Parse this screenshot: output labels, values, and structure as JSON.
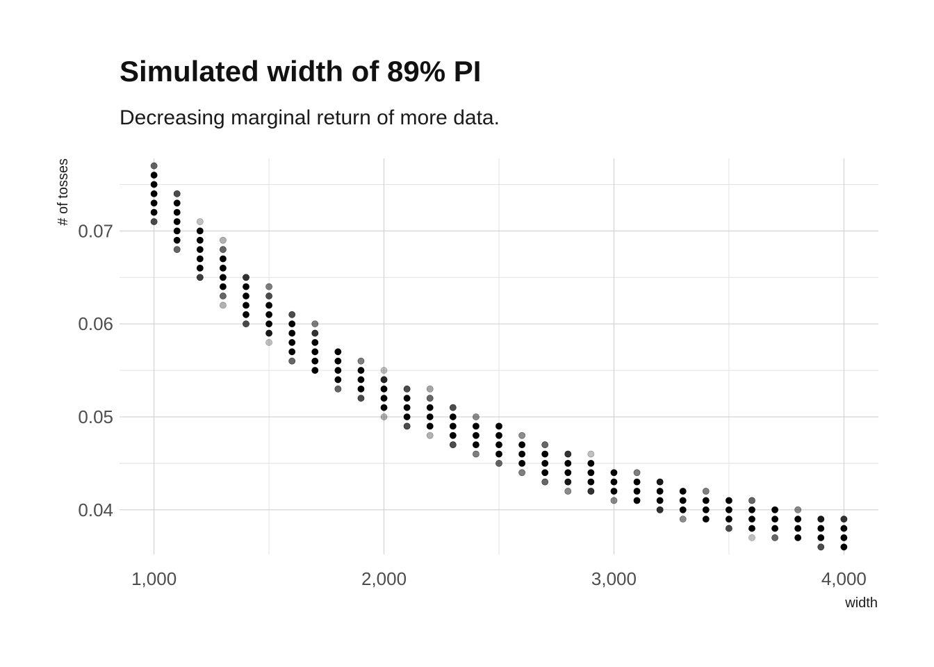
{
  "chart_data": {
    "type": "scatter",
    "title": "Simulated width of 89% PI",
    "subtitle": "Decreasing marginal return of more data.",
    "xlabel": "width",
    "ylabel": "# of tosses",
    "xlim": [
      850,
      4150
    ],
    "ylim": [
      0.0352,
      0.0778
    ],
    "x_ticks": [
      1000,
      2000,
      3000,
      4000
    ],
    "x_tick_labels": [
      "1,000",
      "2,000",
      "3,000",
      "4,000"
    ],
    "y_ticks": [
      0.04,
      0.05,
      0.06,
      0.07
    ],
    "y_tick_labels": [
      "0.04",
      "0.05",
      "0.06",
      "0.07"
    ],
    "grid": true,
    "point_color": "#000000",
    "series": [
      {
        "x": 1000,
        "points": [
          [
            0.077,
            0.6
          ],
          [
            0.076,
            1
          ],
          [
            0.075,
            1
          ],
          [
            0.074,
            1
          ],
          [
            0.073,
            1
          ],
          [
            0.072,
            1
          ],
          [
            0.071,
            0.7
          ]
        ]
      },
      {
        "x": 1100,
        "points": [
          [
            0.074,
            0.7
          ],
          [
            0.073,
            1
          ],
          [
            0.072,
            1
          ],
          [
            0.071,
            1
          ],
          [
            0.07,
            1
          ],
          [
            0.069,
            1
          ],
          [
            0.068,
            0.6
          ]
        ]
      },
      {
        "x": 1200,
        "points": [
          [
            0.071,
            0.25
          ],
          [
            0.07,
            1
          ],
          [
            0.069,
            1
          ],
          [
            0.068,
            1
          ],
          [
            0.067,
            1
          ],
          [
            0.066,
            1
          ],
          [
            0.065,
            0.75
          ]
        ]
      },
      {
        "x": 1300,
        "points": [
          [
            0.069,
            0.3
          ],
          [
            0.068,
            0.6
          ],
          [
            0.067,
            1
          ],
          [
            0.066,
            1
          ],
          [
            0.065,
            1
          ],
          [
            0.064,
            1
          ],
          [
            0.063,
            0.6
          ],
          [
            0.062,
            0.3
          ]
        ]
      },
      {
        "x": 1400,
        "points": [
          [
            0.065,
            0.8
          ],
          [
            0.064,
            1
          ],
          [
            0.063,
            1
          ],
          [
            0.062,
            1
          ],
          [
            0.061,
            1
          ],
          [
            0.06,
            0.7
          ]
        ]
      },
      {
        "x": 1500,
        "points": [
          [
            0.064,
            0.5
          ],
          [
            0.063,
            0.7
          ],
          [
            0.062,
            1
          ],
          [
            0.061,
            1
          ],
          [
            0.06,
            1
          ],
          [
            0.059,
            0.9
          ],
          [
            0.058,
            0.25
          ]
        ]
      },
      {
        "x": 1600,
        "points": [
          [
            0.061,
            0.7
          ],
          [
            0.06,
            1
          ],
          [
            0.059,
            1
          ],
          [
            0.058,
            1
          ],
          [
            0.057,
            1
          ],
          [
            0.056,
            0.6
          ]
        ]
      },
      {
        "x": 1700,
        "points": [
          [
            0.06,
            0.5
          ],
          [
            0.059,
            0.8
          ],
          [
            0.058,
            1
          ],
          [
            0.057,
            1
          ],
          [
            0.056,
            1
          ],
          [
            0.055,
            1
          ]
        ]
      },
      {
        "x": 1800,
        "points": [
          [
            0.057,
            1
          ],
          [
            0.056,
            1
          ],
          [
            0.055,
            1
          ],
          [
            0.054,
            1
          ],
          [
            0.053,
            0.6
          ]
        ]
      },
      {
        "x": 1900,
        "points": [
          [
            0.056,
            0.5
          ],
          [
            0.055,
            1
          ],
          [
            0.054,
            1
          ],
          [
            0.053,
            1
          ],
          [
            0.052,
            0.7
          ]
        ]
      },
      {
        "x": 2000,
        "points": [
          [
            0.055,
            0.25
          ],
          [
            0.054,
            0.85
          ],
          [
            0.053,
            1
          ],
          [
            0.052,
            1
          ],
          [
            0.051,
            1
          ],
          [
            0.05,
            0.3
          ]
        ]
      },
      {
        "x": 2100,
        "points": [
          [
            0.053,
            0.7
          ],
          [
            0.052,
            1
          ],
          [
            0.051,
            1
          ],
          [
            0.05,
            1
          ],
          [
            0.049,
            0.7
          ]
        ]
      },
      {
        "x": 2200,
        "points": [
          [
            0.053,
            0.35
          ],
          [
            0.052,
            0.6
          ],
          [
            0.051,
            1
          ],
          [
            0.05,
            1
          ],
          [
            0.049,
            1
          ],
          [
            0.048,
            0.3
          ]
        ]
      },
      {
        "x": 2300,
        "points": [
          [
            0.051,
            0.7
          ],
          [
            0.05,
            1
          ],
          [
            0.049,
            1
          ],
          [
            0.048,
            1
          ],
          [
            0.047,
            0.7
          ]
        ]
      },
      {
        "x": 2400,
        "points": [
          [
            0.05,
            0.45
          ],
          [
            0.049,
            1
          ],
          [
            0.048,
            1
          ],
          [
            0.047,
            1
          ],
          [
            0.046,
            0.5
          ]
        ]
      },
      {
        "x": 2500,
        "points": [
          [
            0.049,
            1
          ],
          [
            0.048,
            1
          ],
          [
            0.047,
            1
          ],
          [
            0.046,
            1
          ],
          [
            0.045,
            0.6
          ]
        ]
      },
      {
        "x": 2600,
        "points": [
          [
            0.048,
            0.45
          ],
          [
            0.047,
            1
          ],
          [
            0.046,
            1
          ],
          [
            0.045,
            1
          ],
          [
            0.044,
            0.5
          ]
        ]
      },
      {
        "x": 2700,
        "points": [
          [
            0.047,
            0.6
          ],
          [
            0.046,
            1
          ],
          [
            0.045,
            1
          ],
          [
            0.044,
            1
          ],
          [
            0.043,
            0.6
          ]
        ]
      },
      {
        "x": 2800,
        "points": [
          [
            0.046,
            0.8
          ],
          [
            0.045,
            1
          ],
          [
            0.044,
            1
          ],
          [
            0.043,
            0.9
          ],
          [
            0.042,
            0.45
          ]
        ]
      },
      {
        "x": 2900,
        "points": [
          [
            0.046,
            0.25
          ],
          [
            0.045,
            1
          ],
          [
            0.044,
            1
          ],
          [
            0.043,
            1
          ],
          [
            0.042,
            0.8
          ]
        ]
      },
      {
        "x": 3000,
        "points": [
          [
            0.044,
            1
          ],
          [
            0.043,
            1
          ],
          [
            0.042,
            1
          ],
          [
            0.041,
            0.45
          ]
        ]
      },
      {
        "x": 3100,
        "points": [
          [
            0.044,
            0.5
          ],
          [
            0.043,
            1
          ],
          [
            0.042,
            1
          ],
          [
            0.041,
            1
          ]
        ]
      },
      {
        "x": 3200,
        "points": [
          [
            0.043,
            0.9
          ],
          [
            0.042,
            1
          ],
          [
            0.041,
            1
          ],
          [
            0.04,
            0.8
          ]
        ]
      },
      {
        "x": 3300,
        "points": [
          [
            0.042,
            1
          ],
          [
            0.041,
            1
          ],
          [
            0.04,
            1
          ],
          [
            0.039,
            0.45
          ]
        ]
      },
      {
        "x": 3400,
        "points": [
          [
            0.042,
            0.5
          ],
          [
            0.041,
            1
          ],
          [
            0.04,
            1
          ],
          [
            0.039,
            1
          ]
        ]
      },
      {
        "x": 3500,
        "points": [
          [
            0.041,
            1
          ],
          [
            0.04,
            1
          ],
          [
            0.039,
            1
          ],
          [
            0.038,
            0.7
          ]
        ]
      },
      {
        "x": 3600,
        "points": [
          [
            0.041,
            0.6
          ],
          [
            0.04,
            1
          ],
          [
            0.039,
            1
          ],
          [
            0.038,
            1
          ],
          [
            0.037,
            0.25
          ]
        ]
      },
      {
        "x": 3700,
        "points": [
          [
            0.04,
            1
          ],
          [
            0.039,
            1
          ],
          [
            0.038,
            1
          ],
          [
            0.037,
            0.6
          ]
        ]
      },
      {
        "x": 3800,
        "points": [
          [
            0.04,
            0.45
          ],
          [
            0.039,
            1
          ],
          [
            0.038,
            1
          ],
          [
            0.037,
            1
          ]
        ]
      },
      {
        "x": 3900,
        "points": [
          [
            0.039,
            0.9
          ],
          [
            0.038,
            1
          ],
          [
            0.037,
            1
          ],
          [
            0.036,
            0.7
          ]
        ]
      },
      {
        "x": 4000,
        "points": [
          [
            0.039,
            0.8
          ],
          [
            0.038,
            1
          ],
          [
            0.037,
            1
          ],
          [
            0.036,
            1
          ]
        ]
      }
    ]
  }
}
